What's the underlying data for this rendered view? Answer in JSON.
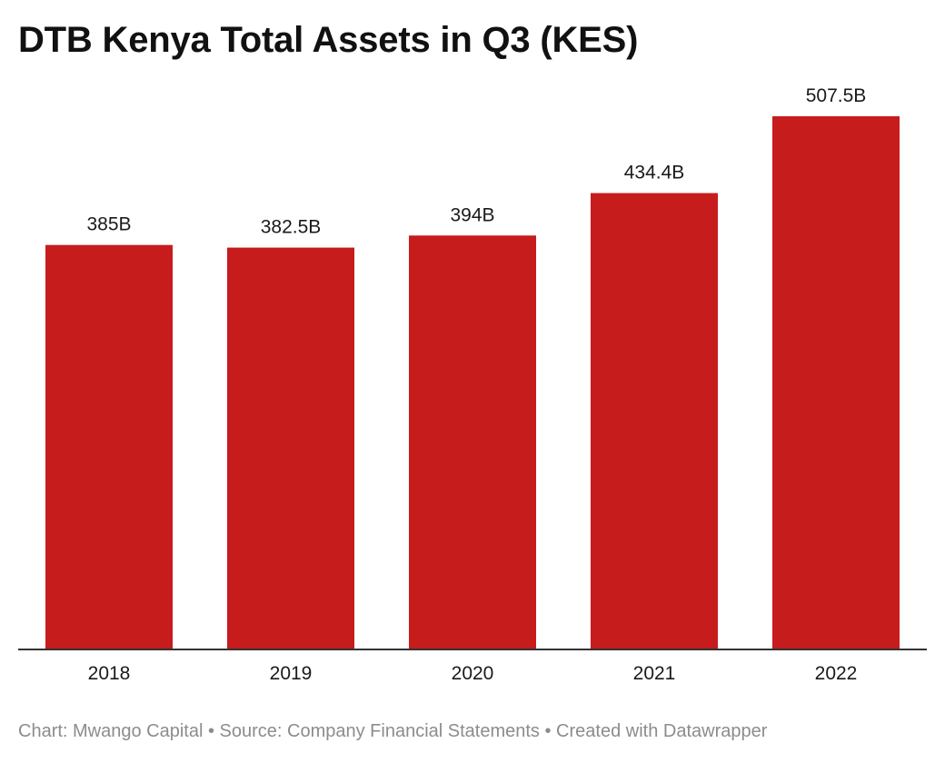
{
  "chart_data": {
    "type": "bar",
    "title": "DTB Kenya Total Assets in Q3 (KES)",
    "categories": [
      "2018",
      "2019",
      "2020",
      "2021",
      "2022"
    ],
    "values": [
      385,
      382.5,
      394,
      434.4,
      507.5
    ],
    "value_labels": [
      "385B",
      "382.5B",
      "394B",
      "434.4B",
      "507.5B"
    ],
    "unit": "B",
    "ylim": [
      0,
      507.5
    ],
    "grid": false,
    "bar_color": "#c71c1c"
  },
  "footer": {
    "text": "Chart: Mwango Capital • Source: Company Financial Statements • Created with Datawrapper"
  }
}
